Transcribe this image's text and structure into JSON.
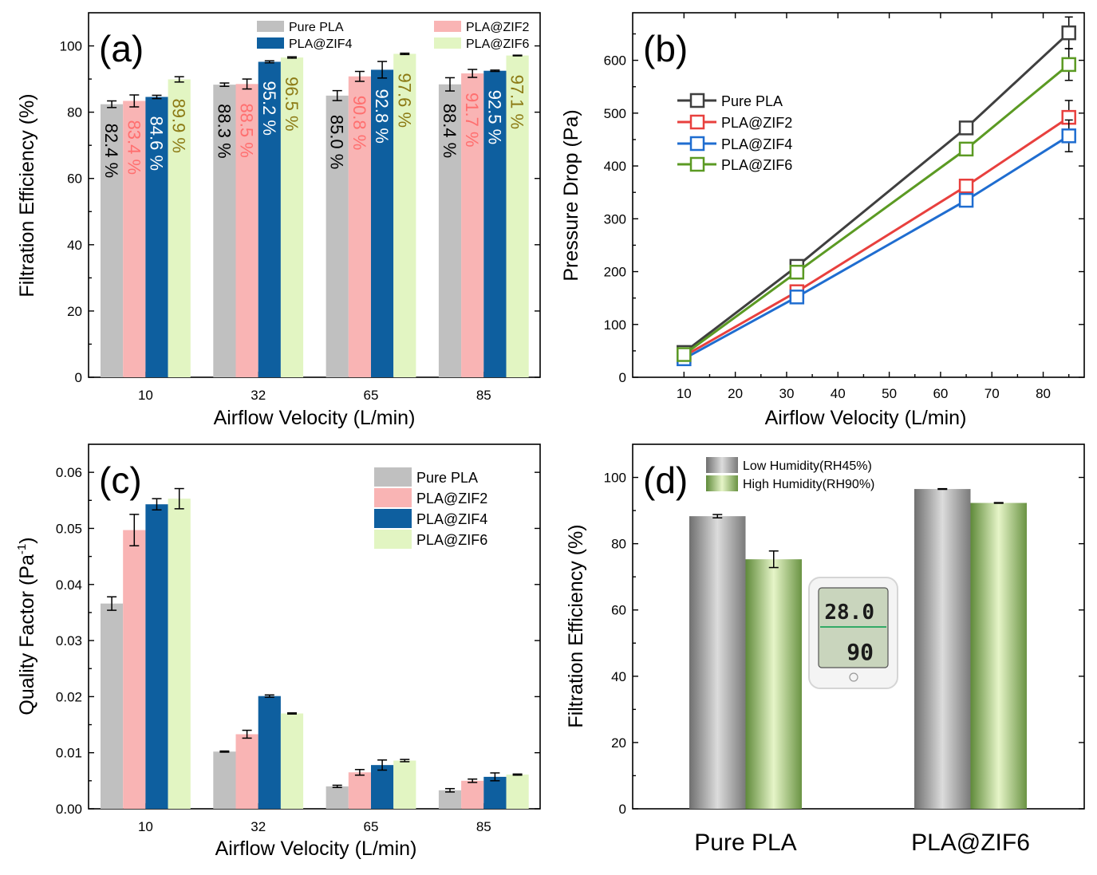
{
  "chart_data": [
    {
      "panel": "(a)",
      "type": "bar",
      "xlabel": "Airflow Velocity (L/min)",
      "ylabel": "Filtration Efficiency (%)",
      "ylim": [
        0,
        110
      ],
      "yticks": [
        "0",
        "20",
        "40",
        "60",
        "80",
        "100"
      ],
      "categories": [
        "10",
        "32",
        "65",
        "85"
      ],
      "legend": [
        "Pure PLA",
        "PLA@ZIF2",
        "PLA@ZIF4",
        "PLA@ZIF6"
      ],
      "series": [
        {
          "name": "Pure PLA",
          "color": "#c0c0c0",
          "values": [
            82.4,
            88.3,
            85.0,
            88.4
          ],
          "errors": [
            1.0,
            0.5,
            1.5,
            2.0
          ],
          "labels": [
            "82.4 %",
            "88.3 %",
            "85.0 %",
            "88.4 %"
          ],
          "label_color": "#000000"
        },
        {
          "name": "PLA@ZIF2",
          "color": "#f9b4b4",
          "values": [
            83.4,
            88.5,
            90.8,
            91.7
          ],
          "errors": [
            1.8,
            1.5,
            1.5,
            1.2
          ],
          "labels": [
            "83.4 %",
            "88.5 %",
            "90.8 %",
            "91.7 %"
          ],
          "label_color": "#ff6f6f"
        },
        {
          "name": "PLA@ZIF4",
          "color": "#0e5f9f",
          "values": [
            84.6,
            95.2,
            92.8,
            92.5
          ],
          "errors": [
            0.5,
            0.3,
            2.5,
            0.2
          ],
          "labels": [
            "84.6 %",
            "95.2 %",
            "92.8 %",
            "92.5 %"
          ],
          "label_color": "#ffffff"
        },
        {
          "name": "PLA@ZIF6",
          "color": "#e2f5c2",
          "values": [
            89.9,
            96.5,
            97.6,
            97.1
          ],
          "errors": [
            0.8,
            0.2,
            0.2,
            0.1
          ],
          "labels": [
            "89.9 %",
            "96.5 %",
            "97.6 %",
            "97.1 %"
          ],
          "label_color": "#8c7a14"
        }
      ]
    },
    {
      "panel": "(b)",
      "type": "line",
      "xlabel": "Airflow Velocity (L/min)",
      "ylabel": "Pressure Drop (Pa)",
      "xlim": [
        0,
        88
      ],
      "ylim": [
        0,
        690
      ],
      "xticks": [
        "10",
        "20",
        "30",
        "40",
        "50",
        "60",
        "70",
        "80"
      ],
      "yticks": [
        "0",
        "100",
        "200",
        "300",
        "400",
        "500",
        "600"
      ],
      "x": [
        10,
        32,
        65,
        85
      ],
      "series": [
        {
          "name": "Pure PLA",
          "color": "#3f3f3f",
          "values": [
            47,
            210,
            472,
            652
          ],
          "errors": [
            8,
            10,
            8,
            30
          ]
        },
        {
          "name": "PLA@ZIF2",
          "color": "#e8403e",
          "values": [
            40,
            162,
            362,
            492
          ],
          "errors": [
            6,
            8,
            8,
            32
          ]
        },
        {
          "name": "PLA@ZIF4",
          "color": "#1f6dd0",
          "values": [
            35,
            152,
            335,
            457
          ],
          "errors": [
            6,
            8,
            8,
            30
          ]
        },
        {
          "name": "PLA@ZIF6",
          "color": "#5b9a23",
          "values": [
            43,
            199,
            432,
            592
          ],
          "errors": [
            6,
            10,
            8,
            30
          ]
        }
      ]
    },
    {
      "panel": "(c)",
      "type": "bar",
      "xlabel": "Airflow Velocity (L/min)",
      "ylabel": "Quality Factor (Pa",
      "ylabel_sup": "-1",
      "ylabel_end": ")",
      "ylim": [
        0,
        0.065
      ],
      "yticks": [
        "0.00",
        "0.01",
        "0.02",
        "0.03",
        "0.04",
        "0.05",
        "0.06"
      ],
      "categories": [
        "10",
        "32",
        "65",
        "85"
      ],
      "legend": [
        "Pure PLA",
        "PLA@ZIF2",
        "PLA@ZIF4",
        "PLA@ZIF6"
      ],
      "series": [
        {
          "name": "Pure PLA",
          "color": "#c0c0c0",
          "values": [
            0.0366,
            0.0102,
            0.004,
            0.0033
          ],
          "errors": [
            0.0012,
            0.0001,
            0.0002,
            0.0003
          ]
        },
        {
          "name": "PLA@ZIF2",
          "color": "#f9b4b4",
          "values": [
            0.0497,
            0.0133,
            0.0065,
            0.005
          ],
          "errors": [
            0.0028,
            0.0007,
            0.0005,
            0.0003
          ]
        },
        {
          "name": "PLA@ZIF4",
          "color": "#0e5f9f",
          "values": [
            0.0543,
            0.0201,
            0.0078,
            0.0057
          ],
          "errors": [
            0.001,
            0.0002,
            0.0009,
            0.0007
          ]
        },
        {
          "name": "PLA@ZIF6",
          "color": "#e2f5c2",
          "values": [
            0.0553,
            0.017,
            0.0086,
            0.0061
          ],
          "errors": [
            0.0018,
            0.0001,
            0.0002,
            0.0001
          ]
        }
      ]
    },
    {
      "panel": "(d)",
      "type": "bar",
      "ylabel": "Filtration Efficiency (%)",
      "ylim": [
        0,
        110
      ],
      "yticks": [
        "0",
        "20",
        "40",
        "60",
        "80",
        "100"
      ],
      "categories": [
        "Pure PLA",
        "PLA@ZIF6"
      ],
      "legend": [
        "Low Humidity(RH45%)",
        "High Humidity(RH90%)"
      ],
      "series": [
        {
          "name": "Low Humidity(RH45%)",
          "color": "#9a9a9a",
          "values": [
            88.3,
            96.5
          ],
          "errors": [
            0.5,
            0.1
          ]
        },
        {
          "name": "High Humidity(RH90%)",
          "color": "#a9c97f",
          "values": [
            75.3,
            92.3
          ],
          "errors": [
            2.5,
            0.1
          ]
        }
      ],
      "inset": {
        "temperature": "28.0",
        "humidity": "90"
      }
    }
  ]
}
